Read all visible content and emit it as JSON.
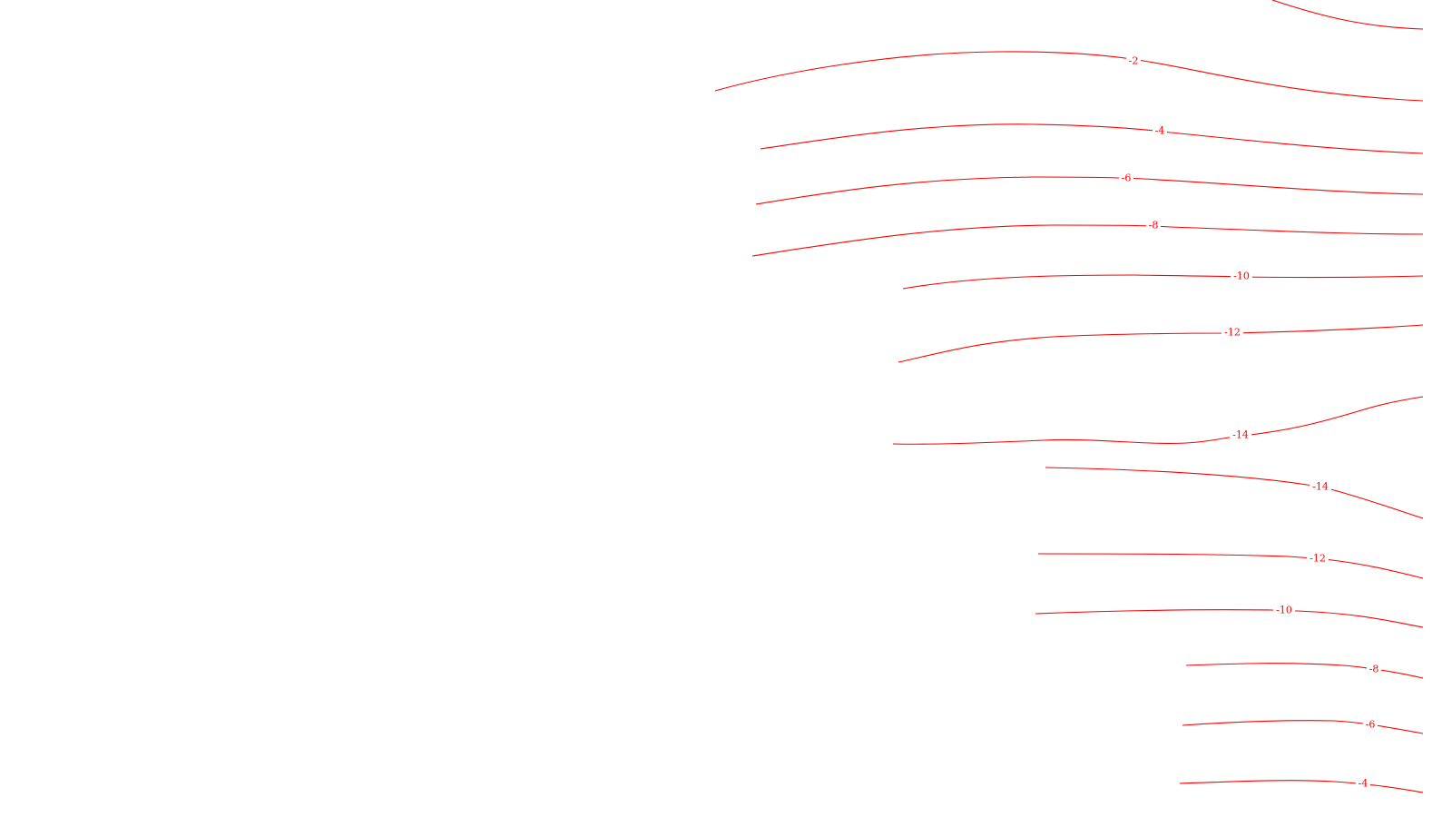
{
  "map": {
    "background_color": "#ffffff",
    "contour_color": "#ff0000",
    "contours": [
      {
        "id": "c-top-edge",
        "label": ""
      },
      {
        "id": "c-n2",
        "label": "-2"
      },
      {
        "id": "c-n4-upper",
        "label": "-4"
      },
      {
        "id": "c-n6-upper",
        "label": "-6"
      },
      {
        "id": "c-n8-upper",
        "label": "-8"
      },
      {
        "id": "c-n10-upper",
        "label": "-10"
      },
      {
        "id": "c-n12-upper",
        "label": "-12"
      },
      {
        "id": "c-n14-upper",
        "label": "-14"
      },
      {
        "id": "c-n14-lower",
        "label": "-14"
      },
      {
        "id": "c-n12-lower",
        "label": "-12"
      },
      {
        "id": "c-n10-lower",
        "label": "-10"
      },
      {
        "id": "c-n8-lower",
        "label": "-8"
      },
      {
        "id": "c-n6-lower",
        "label": "-6"
      },
      {
        "id": "c-n4-lower",
        "label": "-4"
      }
    ]
  }
}
